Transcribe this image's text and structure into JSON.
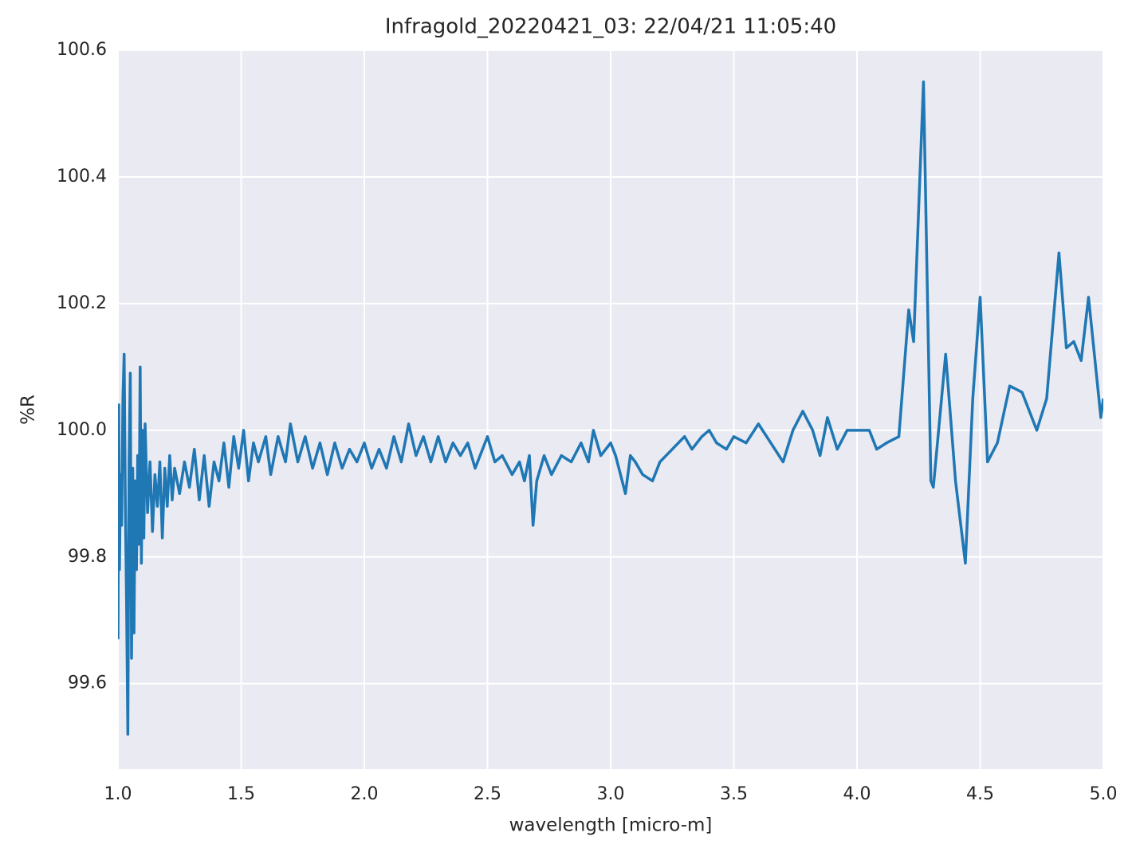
{
  "chart_data": {
    "type": "line",
    "title": "Infragold_20220421_03:  22/04/21 11:05:40",
    "xlabel": "wavelength [micro-m]",
    "ylabel": "%R",
    "xlim": [
      1.0,
      5.0
    ],
    "ylim": [
      99.465,
      100.6
    ],
    "xticks": [
      {
        "value": 1,
        "label": "1.0"
      },
      1.5,
      {
        "value": 2,
        "label": "2.0"
      },
      2.5,
      {
        "value": 3,
        "label": "3.0"
      },
      3.5,
      {
        "value": 4,
        "label": "4.0"
      },
      4.5,
      {
        "value": 5,
        "label": "5.0"
      }
    ],
    "yticks": [
      99.6,
      99.8,
      {
        "value": 100,
        "label": "100.0"
      },
      100.2,
      100.4,
      100.6
    ],
    "grid": true,
    "background": "#eaeaf2",
    "series": [
      {
        "color": "#1f77b4",
        "x": [
          1.0,
          1.003,
          1.006,
          1.01,
          1.015,
          1.02,
          1.025,
          1.03,
          1.035,
          1.04,
          1.045,
          1.05,
          1.055,
          1.06,
          1.065,
          1.07,
          1.075,
          1.08,
          1.085,
          1.09,
          1.095,
          1.1,
          1.105,
          1.11,
          1.12,
          1.13,
          1.14,
          1.15,
          1.16,
          1.17,
          1.18,
          1.19,
          1.2,
          1.21,
          1.22,
          1.23,
          1.25,
          1.27,
          1.29,
          1.31,
          1.33,
          1.35,
          1.37,
          1.39,
          1.41,
          1.43,
          1.45,
          1.47,
          1.49,
          1.51,
          1.53,
          1.55,
          1.57,
          1.6,
          1.62,
          1.65,
          1.68,
          1.7,
          1.73,
          1.76,
          1.79,
          1.82,
          1.85,
          1.88,
          1.91,
          1.94,
          1.97,
          2.0,
          2.03,
          2.06,
          2.09,
          2.12,
          2.15,
          2.18,
          2.21,
          2.24,
          2.27,
          2.3,
          2.33,
          2.36,
          2.39,
          2.42,
          2.45,
          2.5,
          2.53,
          2.56,
          2.6,
          2.63,
          2.65,
          2.67,
          2.685,
          2.7,
          2.73,
          2.76,
          2.8,
          2.84,
          2.88,
          2.91,
          2.93,
          2.96,
          3.0,
          3.02,
          3.04,
          3.06,
          3.08,
          3.1,
          3.13,
          3.17,
          3.2,
          3.25,
          3.3,
          3.33,
          3.37,
          3.4,
          3.43,
          3.47,
          3.5,
          3.55,
          3.6,
          3.65,
          3.7,
          3.74,
          3.78,
          3.82,
          3.85,
          3.88,
          3.92,
          3.96,
          4.0,
          4.05,
          4.08,
          4.12,
          4.17,
          4.21,
          4.23,
          4.27,
          4.3,
          4.31,
          4.36,
          4.4,
          4.44,
          4.47,
          4.5,
          4.53,
          4.57,
          4.62,
          4.67,
          4.73,
          4.77,
          4.82,
          4.85,
          4.88,
          4.91,
          4.94,
          4.99,
          5.0
        ],
        "values": [
          99.67,
          100.04,
          99.78,
          99.93,
          99.85,
          100.05,
          100.12,
          99.88,
          99.72,
          99.52,
          99.95,
          100.09,
          99.64,
          99.94,
          99.68,
          99.92,
          99.78,
          99.96,
          99.82,
          100.1,
          99.79,
          100.0,
          99.83,
          100.01,
          99.87,
          99.95,
          99.84,
          99.93,
          99.88,
          99.95,
          99.83,
          99.94,
          99.88,
          99.96,
          99.89,
          99.94,
          99.9,
          99.95,
          99.91,
          99.97,
          99.89,
          99.96,
          99.88,
          99.95,
          99.92,
          99.98,
          99.91,
          99.99,
          99.94,
          100.0,
          99.92,
          99.98,
          99.95,
          99.99,
          99.93,
          99.99,
          99.95,
          100.01,
          99.95,
          99.99,
          99.94,
          99.98,
          99.93,
          99.98,
          99.94,
          99.97,
          99.95,
          99.98,
          99.94,
          99.97,
          99.94,
          99.99,
          99.95,
          100.01,
          99.96,
          99.99,
          99.95,
          99.99,
          99.95,
          99.98,
          99.96,
          99.98,
          99.94,
          99.99,
          99.95,
          99.96,
          99.93,
          99.95,
          99.92,
          99.96,
          99.85,
          99.92,
          99.96,
          99.93,
          99.96,
          99.95,
          99.98,
          99.95,
          100.0,
          99.96,
          99.98,
          99.96,
          99.93,
          99.9,
          99.96,
          99.95,
          99.93,
          99.92,
          99.95,
          99.97,
          99.99,
          99.97,
          99.99,
          100.0,
          99.98,
          99.97,
          99.99,
          99.98,
          100.01,
          99.98,
          99.95,
          100.0,
          100.03,
          100.0,
          99.96,
          100.02,
          99.97,
          100.0,
          100.0,
          100.0,
          99.97,
          99.98,
          99.99,
          100.19,
          100.14,
          100.55,
          99.92,
          99.91,
          100.12,
          99.92,
          99.79,
          100.05,
          100.21,
          99.95,
          99.98,
          100.07,
          100.06,
          100.0,
          100.05,
          100.28,
          100.13,
          100.14,
          100.11,
          100.21,
          100.02,
          100.05
        ]
      }
    ]
  }
}
